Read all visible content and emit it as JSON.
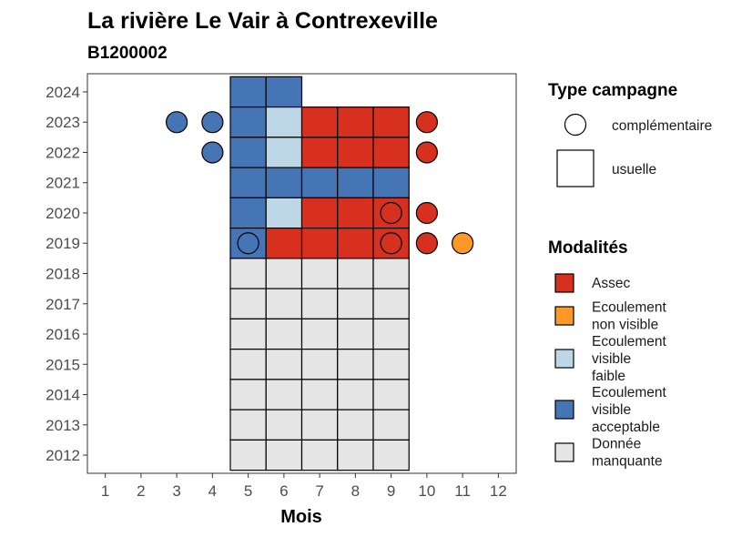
{
  "chart_data": {
    "type": "heatmap",
    "title": "La rivière Le Vair à Contrexeville",
    "subtitle": "B1200002",
    "xlabel": "Mois",
    "ylabel": "",
    "x_ticks": [
      "1",
      "2",
      "3",
      "4",
      "5",
      "6",
      "7",
      "8",
      "9",
      "10",
      "11",
      "12"
    ],
    "y_ticks": [
      "2012",
      "2013",
      "2014",
      "2015",
      "2016",
      "2017",
      "2018",
      "2019",
      "2020",
      "2021",
      "2022",
      "2023",
      "2024"
    ],
    "xlim": [
      0.5,
      12.5
    ],
    "ylim": [
      2011.4,
      2024.6
    ],
    "colors": {
      "Assec": "#d7301f",
      "Ecoulement non visible": "#fe9929",
      "Ecoulement visible faible": "#bdd7e7",
      "Ecoulement visible acceptable": "#4575b4",
      "Donnée manquante": "#e5e5e5"
    },
    "usuelle": [
      {
        "year": 2024,
        "month": 5,
        "modalite": "Ecoulement visible acceptable"
      },
      {
        "year": 2024,
        "month": 6,
        "modalite": "Ecoulement visible acceptable"
      },
      {
        "year": 2023,
        "month": 5,
        "modalite": "Ecoulement visible acceptable"
      },
      {
        "year": 2023,
        "month": 6,
        "modalite": "Ecoulement visible faible"
      },
      {
        "year": 2023,
        "month": 7,
        "modalite": "Assec"
      },
      {
        "year": 2023,
        "month": 8,
        "modalite": "Assec"
      },
      {
        "year": 2023,
        "month": 9,
        "modalite": "Assec"
      },
      {
        "year": 2022,
        "month": 5,
        "modalite": "Ecoulement visible acceptable"
      },
      {
        "year": 2022,
        "month": 6,
        "modalite": "Ecoulement visible faible"
      },
      {
        "year": 2022,
        "month": 7,
        "modalite": "Assec"
      },
      {
        "year": 2022,
        "month": 8,
        "modalite": "Assec"
      },
      {
        "year": 2022,
        "month": 9,
        "modalite": "Assec"
      },
      {
        "year": 2021,
        "month": 5,
        "modalite": "Ecoulement visible acceptable"
      },
      {
        "year": 2021,
        "month": 6,
        "modalite": "Ecoulement visible acceptable"
      },
      {
        "year": 2021,
        "month": 7,
        "modalite": "Ecoulement visible acceptable"
      },
      {
        "year": 2021,
        "month": 8,
        "modalite": "Ecoulement visible acceptable"
      },
      {
        "year": 2021,
        "month": 9,
        "modalite": "Ecoulement visible acceptable"
      },
      {
        "year": 2020,
        "month": 5,
        "modalite": "Ecoulement visible acceptable"
      },
      {
        "year": 2020,
        "month": 6,
        "modalite": "Ecoulement visible faible"
      },
      {
        "year": 2020,
        "month": 7,
        "modalite": "Assec"
      },
      {
        "year": 2020,
        "month": 8,
        "modalite": "Assec"
      },
      {
        "year": 2020,
        "month": 9,
        "modalite": "Assec"
      },
      {
        "year": 2019,
        "month": 5,
        "modalite": "Ecoulement visible acceptable"
      },
      {
        "year": 2019,
        "month": 6,
        "modalite": "Assec"
      },
      {
        "year": 2019,
        "month": 7,
        "modalite": "Assec"
      },
      {
        "year": 2019,
        "month": 8,
        "modalite": "Assec"
      },
      {
        "year": 2019,
        "month": 9,
        "modalite": "Assec"
      },
      {
        "year": 2018,
        "month": 5,
        "modalite": "Donnée manquante"
      },
      {
        "year": 2018,
        "month": 6,
        "modalite": "Donnée manquante"
      },
      {
        "year": 2018,
        "month": 7,
        "modalite": "Donnée manquante"
      },
      {
        "year": 2018,
        "month": 8,
        "modalite": "Donnée manquante"
      },
      {
        "year": 2018,
        "month": 9,
        "modalite": "Donnée manquante"
      },
      {
        "year": 2017,
        "month": 5,
        "modalite": "Donnée manquante"
      },
      {
        "year": 2017,
        "month": 6,
        "modalite": "Donnée manquante"
      },
      {
        "year": 2017,
        "month": 7,
        "modalite": "Donnée manquante"
      },
      {
        "year": 2017,
        "month": 8,
        "modalite": "Donnée manquante"
      },
      {
        "year": 2017,
        "month": 9,
        "modalite": "Donnée manquante"
      },
      {
        "year": 2016,
        "month": 5,
        "modalite": "Donnée manquante"
      },
      {
        "year": 2016,
        "month": 6,
        "modalite": "Donnée manquante"
      },
      {
        "year": 2016,
        "month": 7,
        "modalite": "Donnée manquante"
      },
      {
        "year": 2016,
        "month": 8,
        "modalite": "Donnée manquante"
      },
      {
        "year": 2016,
        "month": 9,
        "modalite": "Donnée manquante"
      },
      {
        "year": 2015,
        "month": 5,
        "modalite": "Donnée manquante"
      },
      {
        "year": 2015,
        "month": 6,
        "modalite": "Donnée manquante"
      },
      {
        "year": 2015,
        "month": 7,
        "modalite": "Donnée manquante"
      },
      {
        "year": 2015,
        "month": 8,
        "modalite": "Donnée manquante"
      },
      {
        "year": 2015,
        "month": 9,
        "modalite": "Donnée manquante"
      },
      {
        "year": 2014,
        "month": 5,
        "modalite": "Donnée manquante"
      },
      {
        "year": 2014,
        "month": 6,
        "modalite": "Donnée manquante"
      },
      {
        "year": 2014,
        "month": 7,
        "modalite": "Donnée manquante"
      },
      {
        "year": 2014,
        "month": 8,
        "modalite": "Donnée manquante"
      },
      {
        "year": 2014,
        "month": 9,
        "modalite": "Donnée manquante"
      },
      {
        "year": 2013,
        "month": 5,
        "modalite": "Donnée manquante"
      },
      {
        "year": 2013,
        "month": 6,
        "modalite": "Donnée manquante"
      },
      {
        "year": 2013,
        "month": 7,
        "modalite": "Donnée manquante"
      },
      {
        "year": 2013,
        "month": 8,
        "modalite": "Donnée manquante"
      },
      {
        "year": 2013,
        "month": 9,
        "modalite": "Donnée manquante"
      },
      {
        "year": 2012,
        "month": 5,
        "modalite": "Donnée manquante"
      },
      {
        "year": 2012,
        "month": 6,
        "modalite": "Donnée manquante"
      },
      {
        "year": 2012,
        "month": 7,
        "modalite": "Donnée manquante"
      },
      {
        "year": 2012,
        "month": 8,
        "modalite": "Donnée manquante"
      },
      {
        "year": 2012,
        "month": 9,
        "modalite": "Donnée manquante"
      }
    ],
    "complementaire": [
      {
        "year": 2023,
        "month": 3,
        "modalite": "Ecoulement visible acceptable"
      },
      {
        "year": 2023,
        "month": 4,
        "modalite": "Ecoulement visible acceptable"
      },
      {
        "year": 2023,
        "month": 10,
        "modalite": "Assec"
      },
      {
        "year": 2022,
        "month": 4,
        "modalite": "Ecoulement visible acceptable"
      },
      {
        "year": 2022,
        "month": 10,
        "modalite": "Assec"
      },
      {
        "year": 2020,
        "month": 9,
        "modalite": "Assec"
      },
      {
        "year": 2020,
        "month": 10,
        "modalite": "Assec"
      },
      {
        "year": 2019,
        "month": 5,
        "modalite": "Ecoulement visible acceptable"
      },
      {
        "year": 2019,
        "month": 9,
        "modalite": "Assec"
      },
      {
        "year": 2019,
        "month": 10,
        "modalite": "Assec"
      },
      {
        "year": 2019,
        "month": 11,
        "modalite": "Ecoulement non visible"
      }
    ],
    "legend_type": {
      "title": "Type campagne",
      "items": [
        {
          "label": "complémentaire",
          "shape": "circle"
        },
        {
          "label": "usuelle",
          "shape": "square"
        }
      ]
    },
    "legend_modalites": {
      "title": "Modalités",
      "items": [
        {
          "key": "Assec",
          "lines": [
            "Assec"
          ]
        },
        {
          "key": "Ecoulement non visible",
          "lines": [
            "Ecoulement",
            "non visible"
          ]
        },
        {
          "key": "Ecoulement visible faible",
          "lines": [
            "Ecoulement",
            "visible",
            "faible"
          ]
        },
        {
          "key": "Ecoulement visible acceptable",
          "lines": [
            "Ecoulement",
            "visible",
            "acceptable"
          ]
        },
        {
          "key": "Donnée manquante",
          "lines": [
            "Donnée",
            "manquante"
          ]
        }
      ]
    },
    "legend_placement": "right",
    "grid": false
  }
}
